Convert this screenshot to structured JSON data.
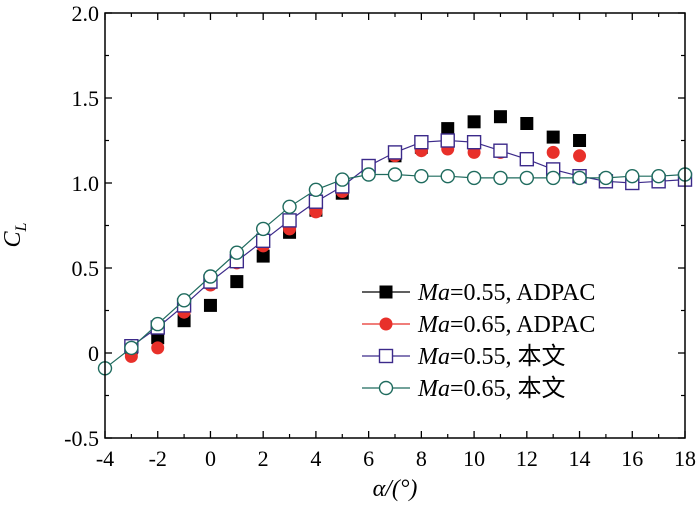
{
  "chart_data": {
    "type": "line",
    "title": "",
    "xlabel": "α/(°)",
    "ylabel": "C_L",
    "ylabel_main": "C",
    "ylabel_sub": "L",
    "xlim": [
      -4,
      18
    ],
    "ylim": [
      -0.5,
      2.0
    ],
    "x_ticks": [
      -4,
      -2,
      0,
      2,
      4,
      6,
      8,
      10,
      12,
      14,
      16,
      18
    ],
    "x_tick_labels": [
      "-4",
      "-2",
      "0",
      "2",
      "4",
      "6",
      "8",
      "10",
      "12",
      "14",
      "16",
      "18"
    ],
    "y_ticks": [
      -0.5,
      0,
      0.5,
      1.0,
      1.5,
      2.0
    ],
    "y_tick_labels": [
      "-0.5",
      "0",
      "0.5",
      "1.0",
      "1.5",
      "2.0"
    ],
    "grid": false,
    "legend_position": "bottom-right",
    "series": [
      {
        "name": "Ma=0.55, ADPAC",
        "legend_italic": "Ma",
        "legend_rest": "=0.55, ADPAC",
        "color": "#000000",
        "marker": "filled-square",
        "line": false,
        "x": [
          -3,
          -2,
          -1,
          0,
          1,
          2,
          3,
          4,
          5,
          6,
          7,
          8,
          9,
          10,
          11,
          12,
          13,
          14
        ],
        "y": [
          0.03,
          0.09,
          0.19,
          0.28,
          0.42,
          0.57,
          0.71,
          0.84,
          0.94,
          1.09,
          1.16,
          1.21,
          1.32,
          1.36,
          1.39,
          1.35,
          1.27,
          1.25
        ]
      },
      {
        "name": "Ma=0.65, ADPAC",
        "legend_italic": "Ma",
        "legend_rest": "=0.65, ADPAC",
        "color": "#e8302a",
        "marker": "filled-circle",
        "line": false,
        "x": [
          -3,
          -2,
          -1,
          0,
          1,
          2,
          3,
          4,
          5,
          6,
          7,
          8,
          9,
          10,
          11,
          12,
          13,
          14
        ],
        "y": [
          -0.02,
          0.03,
          0.24,
          0.4,
          0.53,
          0.63,
          0.73,
          0.83,
          0.95,
          1.1,
          1.16,
          1.19,
          1.2,
          1.18,
          1.18,
          1.14,
          1.18,
          1.16
        ]
      },
      {
        "name": "Ma=0.55, 本文",
        "legend_italic": "Ma",
        "legend_rest": "=0.55, 本文",
        "color": "#3c2a8a",
        "marker": "open-square",
        "line": true,
        "x": [
          -3,
          -2,
          -1,
          0,
          1,
          2,
          3,
          4,
          5,
          6,
          7,
          8,
          9,
          10,
          11,
          12,
          13,
          14,
          15,
          16,
          17,
          18
        ],
        "y": [
          0.04,
          0.15,
          0.28,
          0.42,
          0.54,
          0.66,
          0.78,
          0.89,
          0.98,
          1.1,
          1.18,
          1.24,
          1.25,
          1.24,
          1.19,
          1.14,
          1.08,
          1.04,
          1.01,
          1.0,
          1.01,
          1.02
        ]
      },
      {
        "name": "Ma=0.65, 本文",
        "legend_italic": "Ma",
        "legend_rest": "=0.65, 本文",
        "color": "#1f6b5e",
        "marker": "open-circle",
        "line": true,
        "x": [
          -4,
          -3,
          -2,
          -1,
          0,
          1,
          2,
          3,
          4,
          5,
          6,
          7,
          8,
          9,
          10,
          11,
          12,
          13,
          14,
          15,
          16,
          17,
          18
        ],
        "y": [
          -0.09,
          0.03,
          0.17,
          0.31,
          0.45,
          0.59,
          0.73,
          0.86,
          0.96,
          1.02,
          1.05,
          1.05,
          1.04,
          1.04,
          1.03,
          1.03,
          1.03,
          1.03,
          1.03,
          1.03,
          1.04,
          1.04,
          1.05
        ]
      }
    ]
  }
}
